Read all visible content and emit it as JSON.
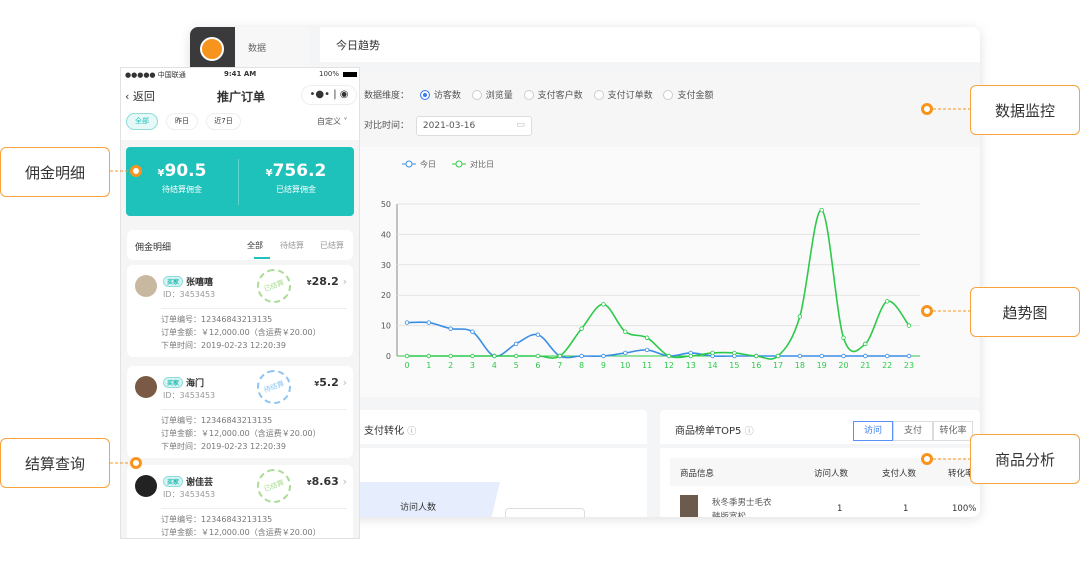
{
  "dashboard": {
    "sidebar_label": "数据",
    "section_title": "今日趋势",
    "dimension_label": "数据维度：",
    "dimensions": [
      "访客数",
      "浏览量",
      "支付客户数",
      "支付订单数",
      "支付金额"
    ],
    "selected_dimension": "访客数",
    "compare_label": "对比时间：",
    "compare_date": "2021-03-16",
    "conversion_title": "支付转化",
    "funnel_label": "访问人数",
    "top5_title": "商品榜单TOP5",
    "top5_tabs": [
      "访问",
      "支付",
      "转化率"
    ],
    "top5_active_tab": "访问",
    "table_headers": [
      "商品信息",
      "访问人数",
      "支付人数",
      "转化率"
    ],
    "table_rows": [
      {
        "name": "秋冬季男士毛衣韩版宽松",
        "visits": "1",
        "payers": "1",
        "rate": "100%"
      }
    ]
  },
  "chart_data": {
    "type": "line",
    "x": [
      0,
      1,
      2,
      3,
      4,
      5,
      6,
      7,
      8,
      9,
      10,
      11,
      12,
      13,
      14,
      15,
      16,
      17,
      18,
      19,
      20,
      21,
      22,
      23
    ],
    "yticks": [
      0,
      10,
      20,
      30,
      40,
      50
    ],
    "ylim": [
      0,
      50
    ],
    "grid": true,
    "legend": "top-left",
    "series": [
      {
        "name": "今日",
        "color": "#3a8ee6",
        "values": [
          11,
          11,
          9,
          8,
          0,
          4,
          7,
          0,
          0,
          0,
          1,
          2,
          0,
          1,
          0,
          0,
          0,
          0,
          0,
          0,
          0,
          0,
          0,
          0
        ]
      },
      {
        "name": "对比日",
        "color": "#2ec94a",
        "values": [
          0,
          0,
          0,
          0,
          0,
          0,
          0,
          0,
          9,
          17,
          8,
          6,
          0,
          0,
          1,
          1,
          0,
          0,
          13,
          48,
          6,
          4,
          18,
          10
        ]
      }
    ]
  },
  "phone": {
    "carrier": "●●●●● 中国联通",
    "time": "9:41 AM",
    "battery": "100%",
    "back_label": "返回",
    "title": "推广订单",
    "filters": [
      "全部",
      "昨日",
      "近7日"
    ],
    "custom_label": "自定义",
    "pending_amount": "90.5",
    "pending_label": "待结算佣金",
    "settled_amount": "756.2",
    "settled_label": "已结算佣金",
    "currency": "¥",
    "list_title": "佣金明细",
    "list_tabs": [
      "全部",
      "待结算",
      "已结算"
    ],
    "buyer_tag": "买家",
    "orders": [
      {
        "name": "张嘻嘻",
        "id": "ID：3453453",
        "amount": "28.2",
        "order_no": "订单编号：12346843213135",
        "order_amount": "订单金额：￥12,000.00（含运费￥20.00）",
        "order_time": "下单时间：2019-02-23 12:20:39",
        "status": "已结算"
      },
      {
        "name": "海门",
        "id": "ID：3453453",
        "amount": "5.2",
        "order_no": "订单编号：12346843213135",
        "order_amount": "订单金额：￥12,000.00（含运费￥20.00）",
        "order_time": "下单时间：2019-02-23 12:20:39",
        "status": "待结算"
      },
      {
        "name": "谢佳芸",
        "id": "ID：3453453",
        "amount": "8.63",
        "order_no": "订单编号：12346843213135",
        "order_amount": "订单金额：￥12,000.00（含运费￥20.00）",
        "order_time": "",
        "status": "已结算"
      }
    ]
  },
  "callouts": {
    "commission": "佣金明细",
    "settlement": "结算查询",
    "monitor": "数据监控",
    "trend": "趋势图",
    "product": "商品分析"
  },
  "colors": {
    "accent": "#f7941d",
    "teal": "#1fc2bb",
    "today": "#3a8ee6",
    "compare": "#2ec94a"
  }
}
